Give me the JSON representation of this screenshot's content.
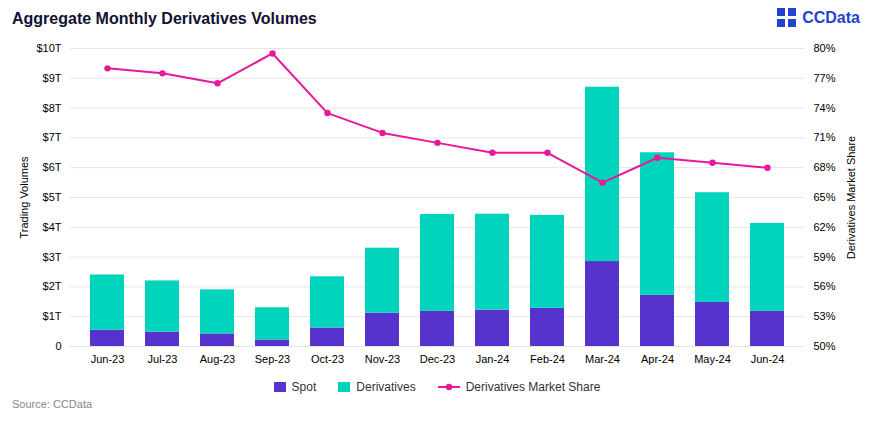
{
  "chart_data": {
    "type": "bar",
    "title": "Aggregate Monthly Derivatives Volumes",
    "stacked": true,
    "categories": [
      "Jun-23",
      "Jul-23",
      "Aug-23",
      "Sep-23",
      "Oct-23",
      "Nov-23",
      "Dec-23",
      "Jan-24",
      "Feb-24",
      "Mar-24",
      "Apr-24",
      "May-24",
      "Jun-24"
    ],
    "series": [
      {
        "name": "Spot",
        "type": "bar",
        "color": "#5533CC",
        "values": [
          0.55,
          0.48,
          0.42,
          0.22,
          0.62,
          1.12,
          1.18,
          1.22,
          1.28,
          2.85,
          1.72,
          1.48,
          1.18
        ]
      },
      {
        "name": "Derivatives",
        "type": "bar",
        "color": "#00D4BC",
        "values": [
          1.85,
          1.72,
          1.48,
          1.08,
          1.72,
          2.18,
          3.25,
          3.22,
          3.12,
          5.85,
          4.78,
          3.68,
          2.95
        ]
      },
      {
        "name": "Derivatives Market Share",
        "type": "line",
        "axis": "y2",
        "color": "#E8189A",
        "marker": "o",
        "values": [
          78.0,
          77.5,
          76.5,
          79.5,
          73.5,
          71.5,
          70.5,
          69.5,
          69.5,
          66.5,
          69.0,
          68.5,
          68.0
        ]
      }
    ],
    "ylabel": "Trading Volumes",
    "y2label": "Derivatives Market Share",
    "ylim": [
      0,
      10
    ],
    "yticks": [
      0,
      {
        "value": 1,
        "label": "$1T"
      },
      {
        "value": 2,
        "label": "$2T"
      },
      {
        "value": 3,
        "label": "$3T"
      },
      {
        "value": 4,
        "label": "$4T"
      },
      {
        "value": 5,
        "label": "$5T"
      },
      {
        "value": 6,
        "label": "$6T"
      },
      {
        "value": 7,
        "label": "$7T"
      },
      {
        "value": 8,
        "label": "$8T"
      },
      {
        "value": 9,
        "label": "$9T"
      },
      {
        "value": 10,
        "label": "$10T"
      }
    ],
    "y2lim": [
      50,
      80
    ],
    "y2ticks": [
      {
        "value": 50,
        "label": "50%"
      },
      {
        "value": 53,
        "label": "53%"
      },
      {
        "value": 56,
        "label": "56%"
      },
      {
        "value": 59,
        "label": "59%"
      },
      {
        "value": 62,
        "label": "62%"
      },
      {
        "value": 65,
        "label": "65%"
      },
      {
        "value": 68,
        "label": "68%"
      },
      {
        "value": 71,
        "label": "71%"
      },
      {
        "value": 74,
        "label": "74%"
      },
      {
        "value": 77,
        "label": "77%"
      },
      {
        "value": 80,
        "label": "80%"
      }
    ],
    "grid": true,
    "legend": "bottom",
    "source": "Source: CCData",
    "annotations": [
      "CCData"
    ]
  }
}
